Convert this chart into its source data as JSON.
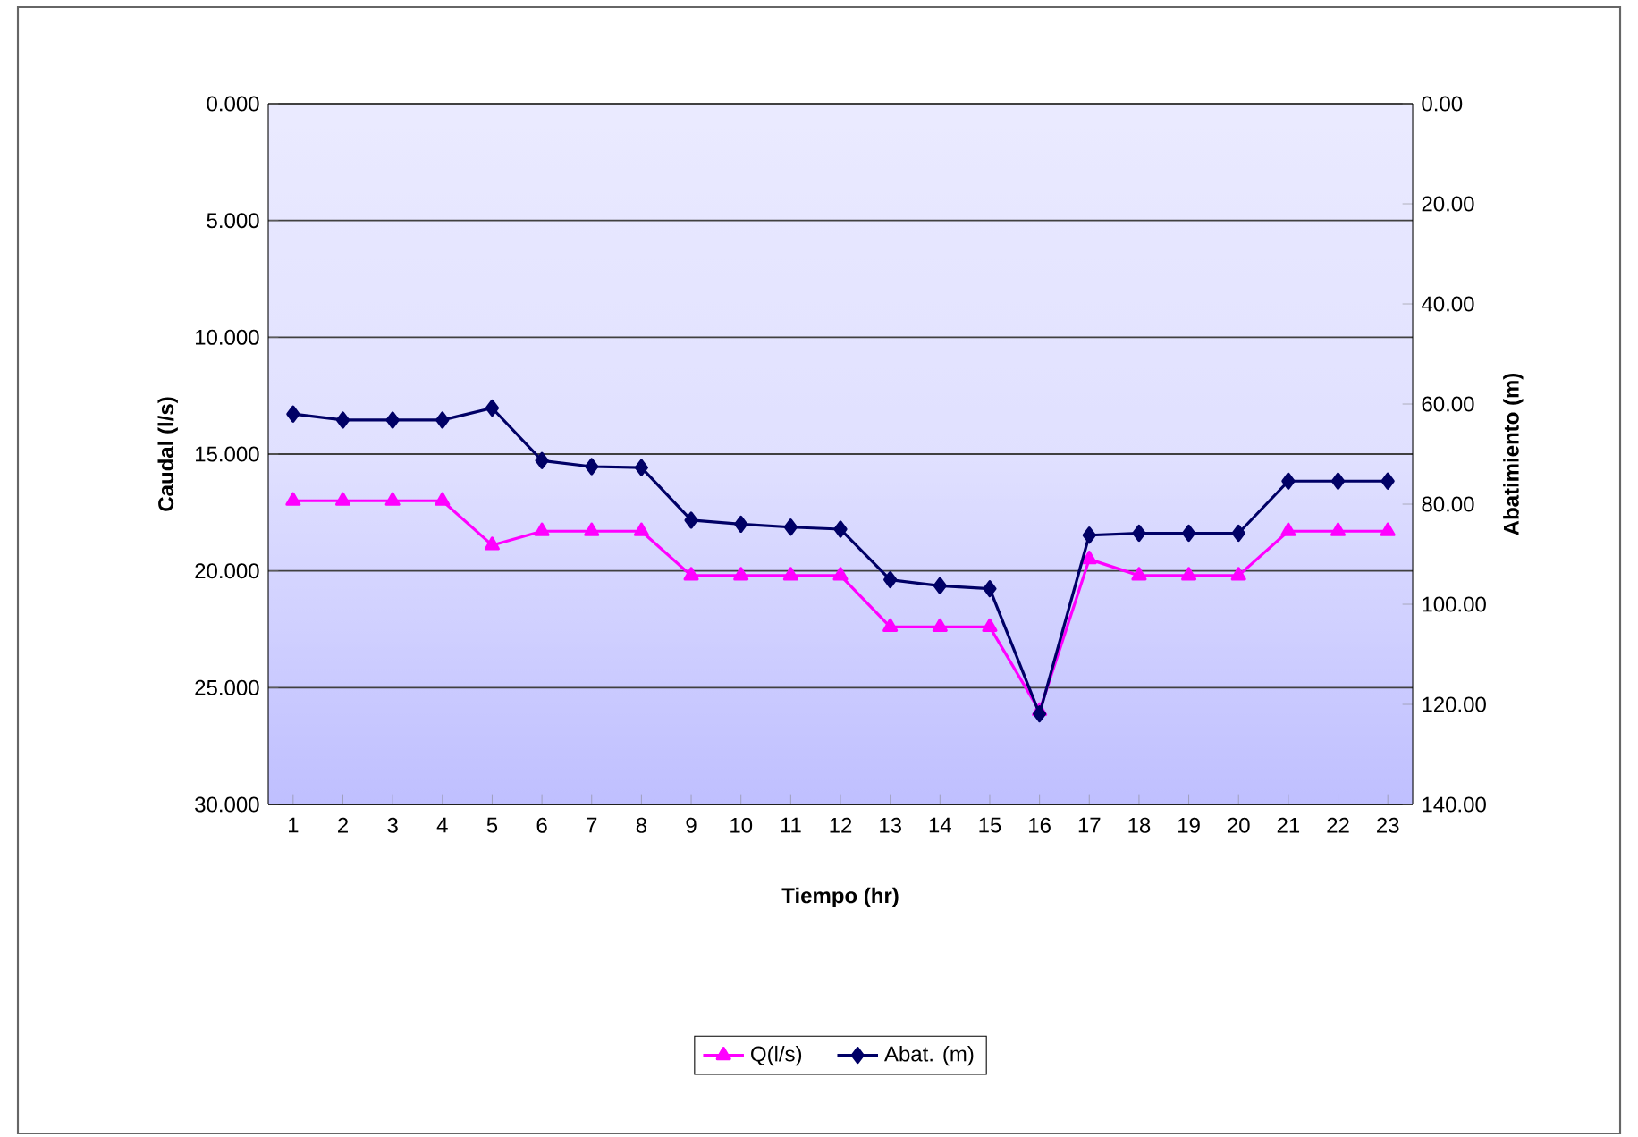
{
  "chart_data": {
    "type": "line",
    "xlabel": "Tiempo (hr)",
    "ylabel": "Caudal (l/s)",
    "y2label": "Abatimiento (m)",
    "categories": [
      "1",
      "2",
      "3",
      "4",
      "5",
      "6",
      "7",
      "8",
      "9",
      "10",
      "11",
      "12",
      "13",
      "14",
      "15",
      "16",
      "17",
      "18",
      "19",
      "20",
      "21",
      "22",
      "23"
    ],
    "series": [
      {
        "name": "Q(l/s)",
        "color": "#ff00ff",
        "marker": "triangle",
        "values": [
          17.0,
          17.0,
          17.0,
          17.0,
          18.9,
          18.3,
          18.3,
          18.3,
          20.2,
          20.2,
          20.2,
          20.2,
          22.4,
          22.4,
          22.4,
          26.0,
          19.5,
          20.2,
          20.2,
          20.2,
          18.3,
          18.3,
          18.3
        ]
      },
      {
        "name": "Abat. (m)",
        "color": "#000066",
        "marker": "diamond",
        "axis": "y2",
        "values": [
          62.0,
          63.2,
          63.2,
          63.2,
          60.8,
          71.3,
          72.5,
          72.7,
          83.2,
          84.0,
          84.6,
          85.0,
          95.1,
          96.3,
          96.9,
          121.9,
          86.2,
          85.8,
          85.8,
          85.8,
          75.4,
          75.4,
          75.4
        ]
      }
    ],
    "ylim": [
      30,
      0
    ],
    "yticks": [
      {
        "value": 0,
        "label": "0.000"
      },
      {
        "value": 5,
        "label": "5.000"
      },
      {
        "value": 10,
        "label": "10.000"
      },
      {
        "value": 15,
        "label": "15.000"
      },
      {
        "value": 20,
        "label": "20.000"
      },
      {
        "value": 25,
        "label": "25.000"
      },
      {
        "value": 30,
        "label": "30.000"
      }
    ],
    "y2lim": [
      140,
      0
    ],
    "y2ticks": [
      {
        "value": 0,
        "label": "0.00"
      },
      {
        "value": 20,
        "label": "20.00"
      },
      {
        "value": 40,
        "label": "40.00"
      },
      {
        "value": 60,
        "label": "60.00"
      },
      {
        "value": 80,
        "label": "80.00"
      },
      {
        "value": 100,
        "label": "100.00"
      },
      {
        "value": 120,
        "label": "120.00"
      },
      {
        "value": 140,
        "label": "140.00"
      }
    ],
    "grid": "y",
    "legend": "bottom",
    "line_style": "solid"
  }
}
